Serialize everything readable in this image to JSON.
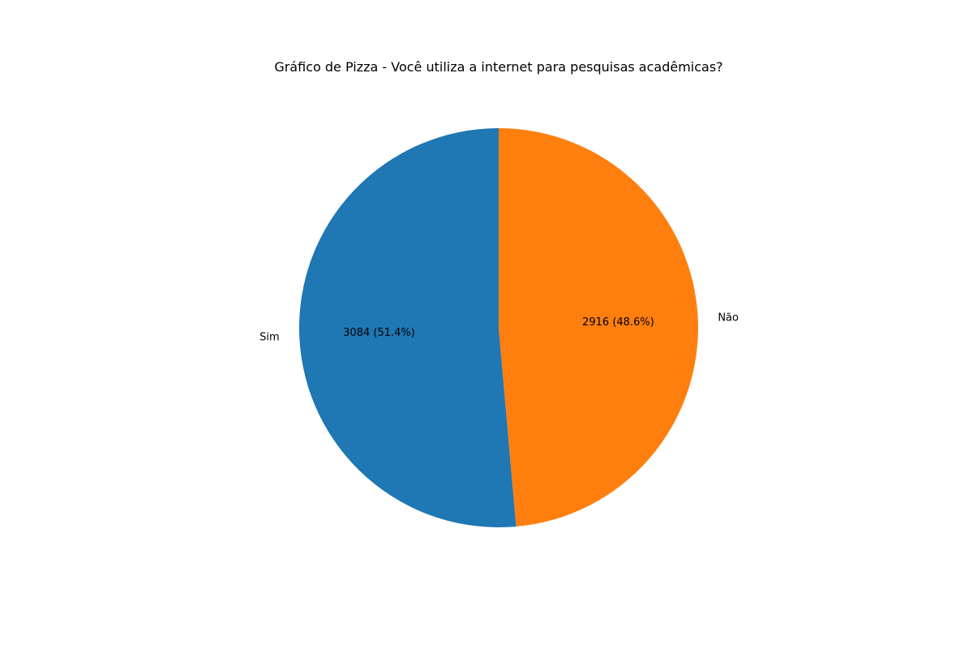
{
  "chart_data": {
    "type": "pie",
    "title": "Gráfico de Pizza - Você utiliza a internet para pesquisas acadêmicas?",
    "start_angle_deg": 90,
    "direction": "counterclockwise",
    "slices": [
      {
        "label": "Sim",
        "value": 3084,
        "percent_label": "3084 (51.4%)",
        "color": "#1f77b4"
      },
      {
        "label": "Não",
        "value": 2916,
        "percent_label": "2916 (48.6%)",
        "color": "#ff7f0e"
      }
    ],
    "legend": "none"
  }
}
